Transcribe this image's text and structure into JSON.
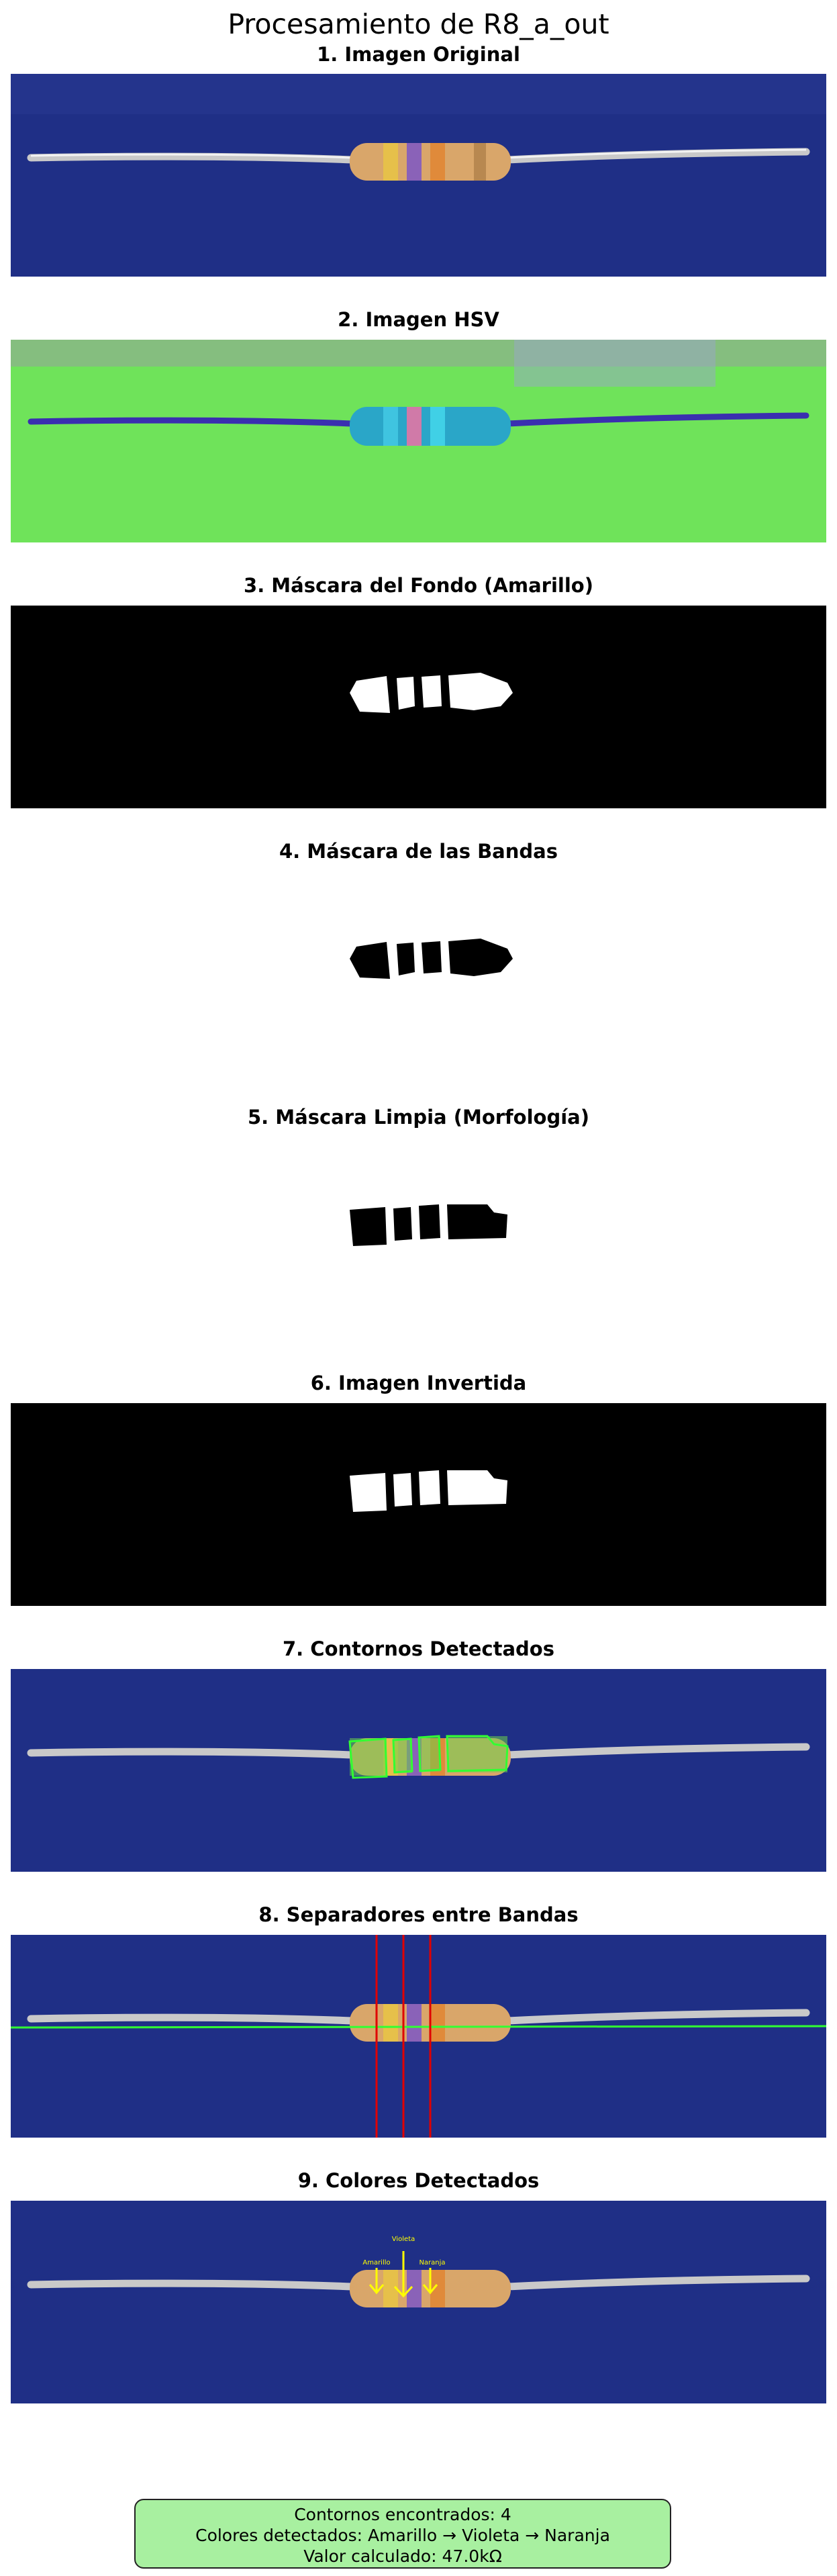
{
  "figure": {
    "title": "Procesamiento de R8_a_out"
  },
  "steps": [
    {
      "title": "1. Imagen Original",
      "kind": "original"
    },
    {
      "title": "2. Imagen HSV",
      "kind": "hsv"
    },
    {
      "title": "3. Máscara del Fondo (Amarillo)",
      "kind": "mask-white-on-black"
    },
    {
      "title": "4. Máscara de las Bandas",
      "kind": "mask-black-on-white"
    },
    {
      "title": "5. Máscara Limpia (Morfología)",
      "kind": "clean-mask-black-on-white"
    },
    {
      "title": "6. Imagen Invertida",
      "kind": "inverted-white-on-black"
    },
    {
      "title": "7. Contornos Detectados",
      "kind": "contours"
    },
    {
      "title": "8. Separadores entre Bandas",
      "kind": "separators"
    },
    {
      "title": "9. Colores Detectados",
      "kind": "colors"
    }
  ],
  "annotations": {
    "band1": "Amarillo",
    "band2": "Violeta",
    "band3": "Naranja"
  },
  "colors": {
    "background_blue": "#1f2f86",
    "resistor_body": "#d9a66a",
    "hsv_green": "#6fe35a",
    "contour_green": "#32ff32",
    "separator_red": "#e00000",
    "annotation_yellow": "#ffff00",
    "summary_bg": "#a8f0a0"
  },
  "summary": {
    "line1": "Contornos encontrados: 4",
    "line2": "Colores detectados: Amarillo → Violeta → Naranja",
    "line3": "Valor calculado: 47.0kΩ"
  }
}
